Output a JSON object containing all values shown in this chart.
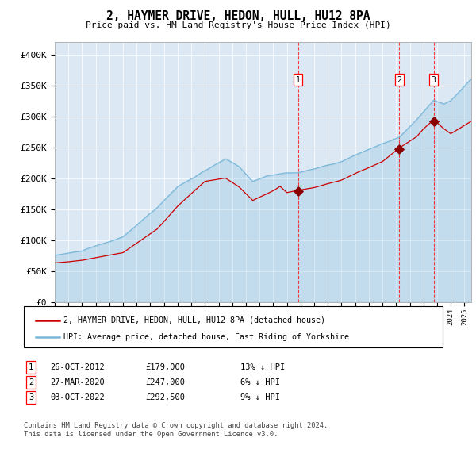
{
  "title": "2, HAYMER DRIVE, HEDON, HULL, HU12 8PA",
  "subtitle": "Price paid vs. HM Land Registry's House Price Index (HPI)",
  "legend_line1": "2, HAYMER DRIVE, HEDON, HULL, HU12 8PA (detached house)",
  "legend_line2": "HPI: Average price, detached house, East Riding of Yorkshire",
  "footnote": "Contains HM Land Registry data © Crown copyright and database right 2024.\nThis data is licensed under the Open Government Licence v3.0.",
  "transactions": [
    {
      "num": 1,
      "date": "26-OCT-2012",
      "price": 179000,
      "hpi_diff": "13% ↓ HPI",
      "x_year": 2012.82
    },
    {
      "num": 2,
      "date": "27-MAR-2020",
      "price": 247000,
      "hpi_diff": "6% ↓ HPI",
      "x_year": 2020.24
    },
    {
      "num": 3,
      "date": "03-OCT-2022",
      "price": 292500,
      "hpi_diff": "9% ↓ HPI",
      "x_year": 2022.75
    }
  ],
  "hpi_color": "#7ab8d9",
  "price_color": "#cc0000",
  "marker_color": "#8b0000",
  "background_color": "#dce9f5",
  "plot_bg": "#ffffff",
  "ylim": [
    0,
    420000
  ],
  "xlim_start": 1995.0,
  "xlim_end": 2025.5,
  "yticks": [
    0,
    50000,
    100000,
    150000,
    200000,
    250000,
    300000,
    350000,
    400000
  ]
}
